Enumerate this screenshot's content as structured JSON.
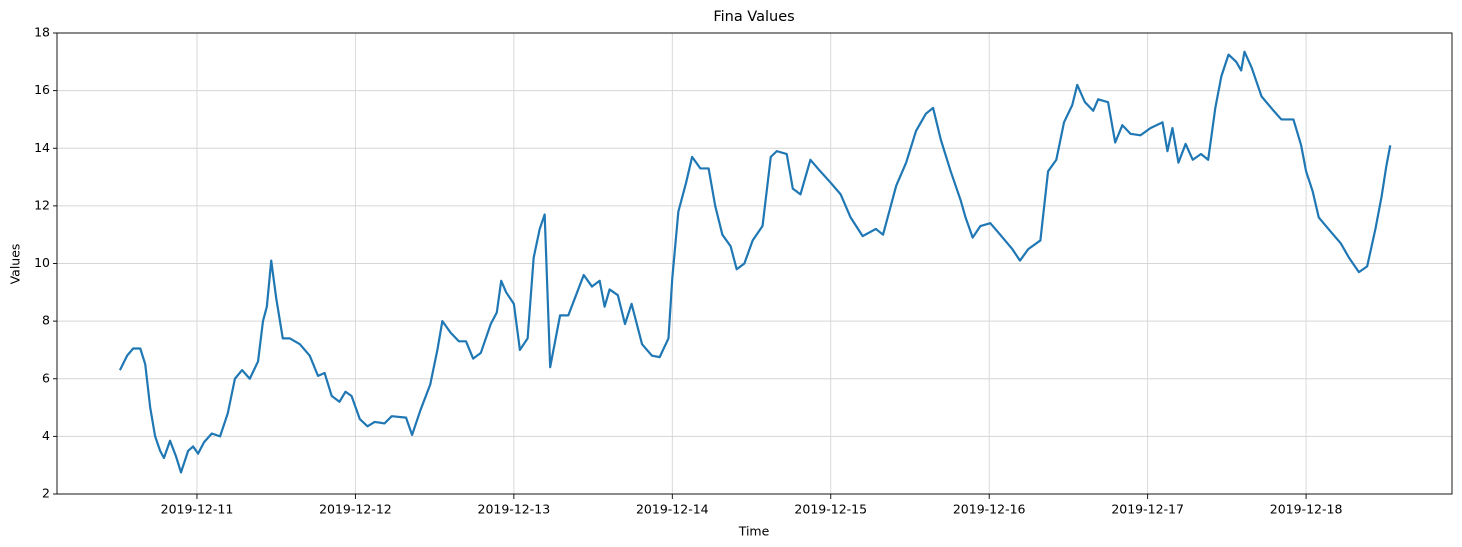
{
  "chart_data": {
    "type": "line",
    "title": "Fina Values",
    "xlabel": "Time",
    "ylabel": "Values",
    "x": [
      "2019-12-10T12:20",
      "2019-12-10T13:25",
      "2019-12-10T14:20",
      "2019-12-10T15:25",
      "2019-12-10T16:10",
      "2019-12-10T16:55",
      "2019-12-10T17:40",
      "2019-12-10T18:25",
      "2019-12-10T19:00",
      "2019-12-10T19:55",
      "2019-12-10T20:50",
      "2019-12-10T21:35",
      "2019-12-10T22:40",
      "2019-12-10T23:25",
      "2019-12-11T00:10",
      "2019-12-11T01:05",
      "2019-12-11T02:15",
      "2019-12-11T03:30",
      "2019-12-11T04:40",
      "2019-12-11T05:45",
      "2019-12-11T06:50",
      "2019-12-11T08:00",
      "2019-12-11T09:15",
      "2019-12-11T10:00",
      "2019-12-11T10:35",
      "2019-12-11T11:15",
      "2019-12-11T12:00",
      "2019-12-11T13:00",
      "2019-12-11T14:05",
      "2019-12-11T15:35",
      "2019-12-11T17:05",
      "2019-12-11T18:20",
      "2019-12-11T19:20",
      "2019-12-11T20:25",
      "2019-12-11T21:35",
      "2019-12-11T22:30",
      "2019-12-11T23:25",
      "2019-12-12T00:40",
      "2019-12-12T01:50",
      "2019-12-12T02:55",
      "2019-12-12T04:25",
      "2019-12-12T05:30",
      "2019-12-12T07:40",
      "2019-12-12T08:35",
      "2019-12-12T09:50",
      "2019-12-12T11:20",
      "2019-12-12T12:25",
      "2019-12-12T13:10",
      "2019-12-12T14:25",
      "2019-12-12T15:40",
      "2019-12-12T16:45",
      "2019-12-12T17:50",
      "2019-12-12T19:00",
      "2019-12-12T20:30",
      "2019-12-12T21:25",
      "2019-12-12T22:05",
      "2019-12-12T22:50",
      "2019-12-13T00:00",
      "2019-12-13T00:55",
      "2019-12-13T02:05",
      "2019-12-13T03:00",
      "2019-12-13T03:55",
      "2019-12-13T04:40",
      "2019-12-13T05:30",
      "2019-12-13T07:00",
      "2019-12-13T08:15",
      "2019-12-13T09:15",
      "2019-12-13T10:35",
      "2019-12-13T11:50",
      "2019-12-13T13:00",
      "2019-12-13T13:45",
      "2019-12-13T14:30",
      "2019-12-13T15:45",
      "2019-12-13T16:50",
      "2019-12-13T17:50",
      "2019-12-13T19:25",
      "2019-12-13T20:55",
      "2019-12-13T22:05",
      "2019-12-13T23:25",
      "2019-12-14T00:00",
      "2019-12-14T00:55",
      "2019-12-14T02:05",
      "2019-12-14T03:00",
      "2019-12-14T04:15",
      "2019-12-14T05:30",
      "2019-12-14T06:30",
      "2019-12-14T07:35",
      "2019-12-14T08:50",
      "2019-12-14T09:45",
      "2019-12-14T10:55",
      "2019-12-14T12:10",
      "2019-12-14T13:40",
      "2019-12-14T14:55",
      "2019-12-14T15:50",
      "2019-12-14T17:20",
      "2019-12-14T18:15",
      "2019-12-14T19:25",
      "2019-12-14T20:55",
      "2019-12-14T22:25",
      "2019-12-15T00:00",
      "2019-12-15T01:30",
      "2019-12-15T03:00",
      "2019-12-15T04:50",
      "2019-12-15T06:50",
      "2019-12-15T07:55",
      "2019-12-15T09:55",
      "2019-12-15T11:25",
      "2019-12-15T12:55",
      "2019-12-15T14:25",
      "2019-12-15T15:30",
      "2019-12-15T16:40",
      "2019-12-15T18:10",
      "2019-12-15T19:40",
      "2019-12-15T20:25",
      "2019-12-15T21:30",
      "2019-12-15T22:40",
      "2019-12-16T00:10",
      "2019-12-16T01:40",
      "2019-12-16T03:30",
      "2019-12-16T04:40",
      "2019-12-16T05:55",
      "2019-12-16T07:45",
      "2019-12-16T08:55",
      "2019-12-16T10:10",
      "2019-12-16T11:20",
      "2019-12-16T12:35",
      "2019-12-16T13:20",
      "2019-12-16T14:30",
      "2019-12-16T15:45",
      "2019-12-16T16:30",
      "2019-12-16T18:00",
      "2019-12-16T19:05",
      "2019-12-16T20:10",
      "2019-12-16T21:25",
      "2019-12-16T22:55",
      "2019-12-17T00:25",
      "2019-12-17T02:15",
      "2019-12-17T03:00",
      "2019-12-17T03:45",
      "2019-12-17T04:40",
      "2019-12-17T05:45",
      "2019-12-17T06:50",
      "2019-12-17T08:05",
      "2019-12-17T09:10",
      "2019-12-17T10:15",
      "2019-12-17T11:10",
      "2019-12-17T12:15",
      "2019-12-17T13:25",
      "2019-12-17T14:10",
      "2019-12-17T14:40",
      "2019-12-17T15:45",
      "2019-12-17T17:15",
      "2019-12-17T19:05",
      "2019-12-17T20:15",
      "2019-12-17T22:05",
      "2019-12-17T23:15",
      "2019-12-18T00:00",
      "2019-12-18T01:00",
      "2019-12-18T01:55",
      "2019-12-18T03:45",
      "2019-12-18T05:15",
      "2019-12-18T06:30",
      "2019-12-18T08:00",
      "2019-12-18T09:15",
      "2019-12-18T10:30",
      "2019-12-18T11:25",
      "2019-12-18T12:10",
      "2019-12-18T12:45"
    ],
    "values": [
      6.3,
      6.8,
      7.05,
      7.05,
      6.5,
      5.0,
      4.0,
      3.5,
      3.25,
      3.85,
      3.3,
      2.75,
      3.5,
      3.65,
      3.4,
      3.8,
      4.1,
      4.0,
      4.8,
      6.0,
      6.3,
      6.0,
      6.6,
      8.0,
      8.5,
      10.1,
      8.8,
      7.4,
      7.4,
      7.2,
      6.8,
      6.1,
      6.2,
      5.4,
      5.2,
      5.55,
      5.4,
      4.6,
      4.35,
      4.5,
      4.45,
      4.7,
      4.65,
      4.05,
      4.9,
      5.8,
      7.0,
      8.0,
      7.6,
      7.3,
      7.3,
      6.7,
      6.9,
      7.9,
      8.3,
      9.4,
      9.0,
      8.6,
      7.0,
      7.4,
      10.2,
      11.2,
      11.7,
      6.4,
      8.2,
      8.2,
      8.8,
      9.6,
      9.2,
      9.4,
      8.5,
      9.1,
      8.9,
      7.9,
      8.6,
      7.2,
      6.8,
      6.75,
      7.4,
      9.5,
      11.8,
      12.8,
      13.7,
      13.3,
      13.3,
      12.0,
      11.0,
      10.6,
      9.8,
      10.0,
      10.8,
      11.3,
      13.7,
      13.9,
      13.8,
      12.6,
      12.4,
      13.6,
      13.2,
      12.8,
      12.4,
      11.6,
      10.95,
      11.2,
      11.0,
      12.7,
      13.5,
      14.6,
      15.2,
      15.4,
      14.3,
      13.2,
      12.2,
      11.6,
      10.9,
      11.3,
      11.4,
      11.0,
      10.5,
      10.1,
      10.5,
      10.8,
      13.2,
      13.6,
      14.9,
      15.5,
      16.2,
      15.6,
      15.3,
      15.7,
      15.6,
      14.2,
      14.8,
      14.5,
      14.45,
      14.7,
      14.9,
      13.9,
      14.7,
      13.5,
      14.15,
      13.6,
      13.8,
      13.6,
      15.4,
      16.5,
      17.25,
      17.0,
      16.7,
      17.35,
      16.8,
      15.8,
      15.3,
      15.0,
      15.0,
      14.1,
      13.2,
      12.5,
      11.6,
      11.1,
      10.7,
      10.2,
      9.7,
      9.9,
      11.2,
      12.3,
      13.4,
      14.1
    ],
    "color": "#1f77b4",
    "xlim": [
      "2019-12-10T02:48",
      "2019-12-18T22:06"
    ],
    "xticks": [
      "2019-12-11",
      "2019-12-12",
      "2019-12-13",
      "2019-12-14",
      "2019-12-15",
      "2019-12-16",
      "2019-12-17",
      "2019-12-18"
    ],
    "ylim": [
      2,
      18
    ],
    "yticks": [
      2,
      4,
      6,
      8,
      10,
      12,
      14,
      16,
      18
    ],
    "grid": true
  }
}
